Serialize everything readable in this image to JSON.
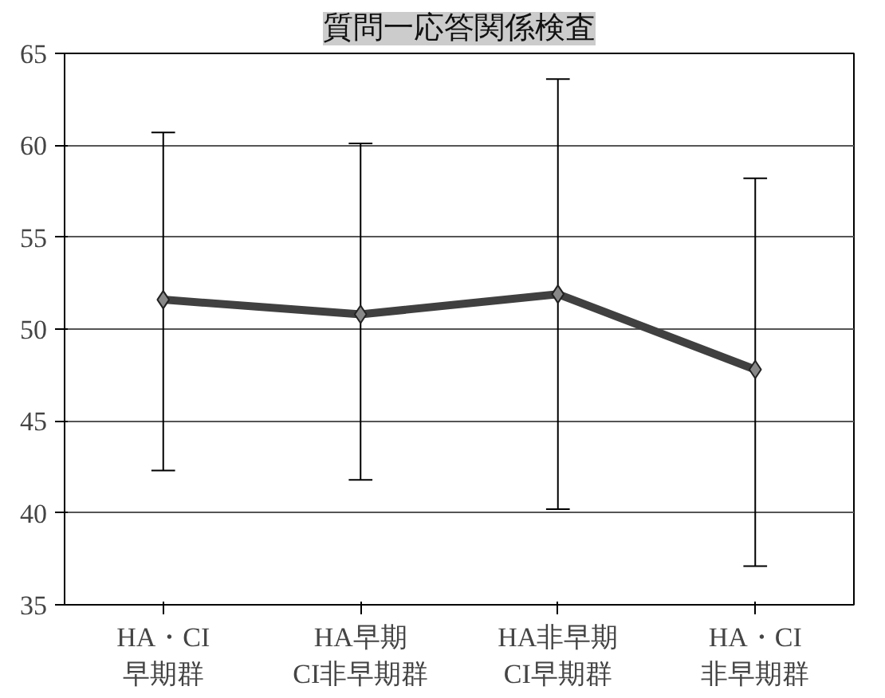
{
  "chart_data": {
    "type": "line",
    "title": "質問一応答関係検査",
    "categories": [
      "HA・CI\n早期群",
      "HA早期\nCI非早期群",
      "HA非早期\nCI早期群",
      "HA・CI\n非早期群"
    ],
    "series": [
      {
        "color": "#404040",
        "values": [
          51.6,
          50.8,
          51.9,
          47.8
        ],
        "errors": [
          [
            42.3,
            60.7
          ],
          [
            41.8,
            60.1
          ],
          [
            40.2,
            63.6
          ],
          [
            37.1,
            58.2
          ]
        ]
      }
    ],
    "ylim": [
      35,
      65
    ],
    "yticks": [
      35,
      40,
      45,
      50,
      55,
      60,
      65
    ],
    "grid": "y",
    "marker": "diamond",
    "line_style": "solid"
  }
}
